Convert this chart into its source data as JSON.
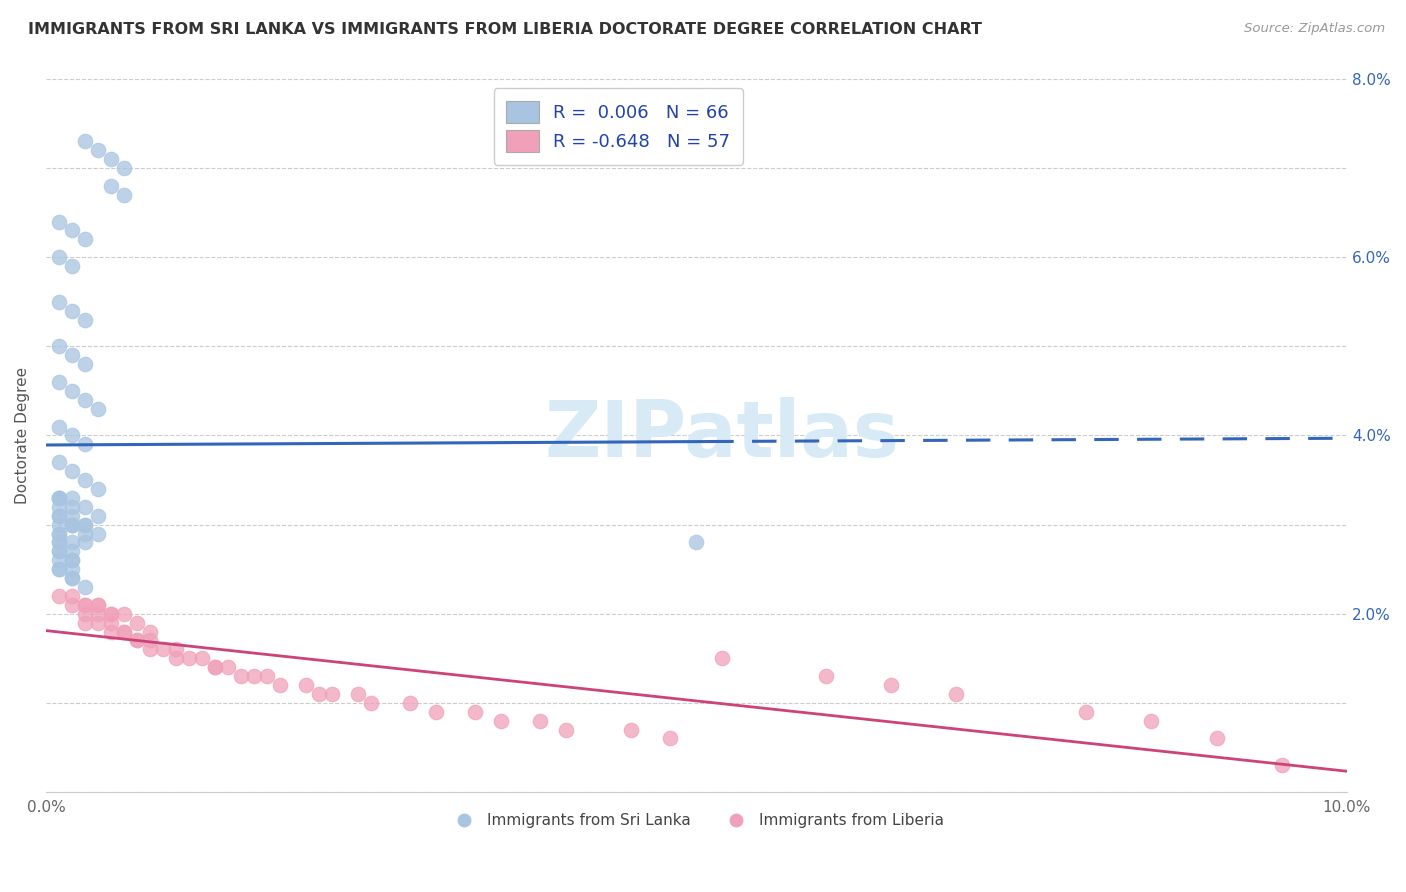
{
  "title": "IMMIGRANTS FROM SRI LANKA VS IMMIGRANTS FROM LIBERIA DOCTORATE DEGREE CORRELATION CHART",
  "source": "Source: ZipAtlas.com",
  "ylabel": "Doctorate Degree",
  "xlim": [
    0.0,
    0.1
  ],
  "ylim": [
    0.0,
    0.08
  ],
  "sri_lanka_color": "#a8c4e0",
  "liberia_color": "#f0a0b8",
  "sri_lanka_R": 0.006,
  "sri_lanka_N": 66,
  "liberia_R": -0.648,
  "liberia_N": 57,
  "sri_lanka_line_color": "#3366bb",
  "liberia_line_color": "#cc4477",
  "watermark_color": "#d8eaf5",
  "sri_lanka_x": [
    0.003,
    0.004,
    0.005,
    0.006,
    0.005,
    0.006,
    0.001,
    0.002,
    0.003,
    0.001,
    0.002,
    0.001,
    0.002,
    0.003,
    0.001,
    0.002,
    0.003,
    0.001,
    0.002,
    0.003,
    0.004,
    0.001,
    0.002,
    0.003,
    0.001,
    0.002,
    0.003,
    0.004,
    0.001,
    0.002,
    0.003,
    0.004,
    0.001,
    0.002,
    0.001,
    0.002,
    0.003,
    0.001,
    0.002,
    0.003,
    0.001,
    0.002,
    0.003,
    0.001,
    0.002,
    0.001,
    0.002,
    0.001,
    0.002,
    0.001,
    0.002,
    0.003,
    0.004,
    0.001,
    0.002,
    0.001,
    0.001,
    0.002,
    0.05,
    0.001,
    0.001,
    0.001,
    0.002,
    0.001,
    0.002,
    0.003
  ],
  "sri_lanka_y": [
    0.073,
    0.072,
    0.071,
    0.07,
    0.068,
    0.067,
    0.064,
    0.063,
    0.062,
    0.06,
    0.059,
    0.055,
    0.054,
    0.053,
    0.05,
    0.049,
    0.048,
    0.046,
    0.045,
    0.044,
    0.043,
    0.041,
    0.04,
    0.039,
    0.037,
    0.036,
    0.035,
    0.034,
    0.033,
    0.033,
    0.032,
    0.031,
    0.033,
    0.032,
    0.031,
    0.03,
    0.03,
    0.029,
    0.028,
    0.028,
    0.03,
    0.03,
    0.029,
    0.028,
    0.027,
    0.027,
    0.026,
    0.026,
    0.025,
    0.025,
    0.024,
    0.03,
    0.029,
    0.032,
    0.031,
    0.033,
    0.031,
    0.03,
    0.028,
    0.029,
    0.028,
    0.027,
    0.026,
    0.025,
    0.024,
    0.023
  ],
  "liberia_x": [
    0.001,
    0.002,
    0.003,
    0.004,
    0.002,
    0.003,
    0.004,
    0.005,
    0.003,
    0.004,
    0.005,
    0.006,
    0.005,
    0.006,
    0.007,
    0.008,
    0.007,
    0.008,
    0.009,
    0.01,
    0.01,
    0.011,
    0.012,
    0.013,
    0.013,
    0.014,
    0.015,
    0.016,
    0.017,
    0.018,
    0.02,
    0.021,
    0.022,
    0.024,
    0.025,
    0.028,
    0.03,
    0.033,
    0.035,
    0.038,
    0.04,
    0.045,
    0.048,
    0.052,
    0.06,
    0.065,
    0.07,
    0.08,
    0.085,
    0.09,
    0.095,
    0.003,
    0.004,
    0.005,
    0.006,
    0.007,
    0.008
  ],
  "liberia_y": [
    0.022,
    0.022,
    0.021,
    0.021,
    0.021,
    0.02,
    0.02,
    0.02,
    0.019,
    0.019,
    0.019,
    0.018,
    0.018,
    0.018,
    0.017,
    0.017,
    0.017,
    0.016,
    0.016,
    0.016,
    0.015,
    0.015,
    0.015,
    0.014,
    0.014,
    0.014,
    0.013,
    0.013,
    0.013,
    0.012,
    0.012,
    0.011,
    0.011,
    0.011,
    0.01,
    0.01,
    0.009,
    0.009,
    0.008,
    0.008,
    0.007,
    0.007,
    0.006,
    0.015,
    0.013,
    0.012,
    0.011,
    0.009,
    0.008,
    0.006,
    0.003,
    0.021,
    0.021,
    0.02,
    0.02,
    0.019,
    0.018
  ]
}
